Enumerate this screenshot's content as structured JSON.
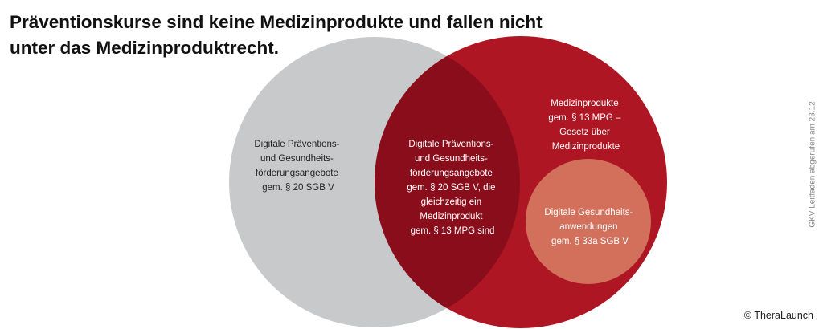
{
  "title": {
    "line1": "Präventionskurse sind keine Medizinprodukte und fallen nicht",
    "line2": "unter das Medizinproduktrecht."
  },
  "colors": {
    "gray_circle": "#c8c9cb",
    "red_circle": "#ad1622",
    "overlap": "#8a0d1b",
    "inner_circle": "#d2705c",
    "label_text_dark": "#222222",
    "label_text_light": "#ffffff"
  },
  "diagram": {
    "left_set": [
      "Digitale Präventions-",
      "und Gesundheits-",
      "förderungsangebote",
      "gem. § 20 SGB V"
    ],
    "overlap": [
      "Digitale Präventions-",
      "und Gesundheits-",
      "förderungsangebote",
      "gem. § 20 SGB V, die",
      "gleichzeitig ein",
      "Medizinprodukt",
      "gem. § 13 MPG sind"
    ],
    "right_set": [
      "Medizinprodukte",
      "gem. § 13 MPG –",
      "Gesetz über",
      "Medizinprodukte"
    ],
    "inner_set": [
      "Digitale Gesundheits-",
      "anwendungen",
      "gem. § 33a SGB V"
    ]
  },
  "side_note": "GKV Leitfaden abgerufen am 23.12",
  "credit": "© TheraLaunch"
}
